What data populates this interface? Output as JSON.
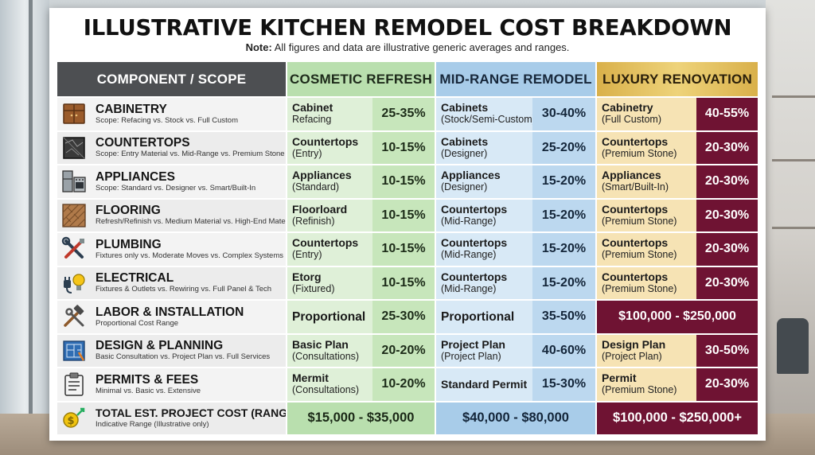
{
  "title": "ILLUSTRATIVE KITCHEN REMODEL COST BREAKDOWN",
  "note": {
    "label": "Note:",
    "text": "All figures and data are illustrative generic averages and ranges."
  },
  "headers": {
    "component": "COMPONENT / SCOPE",
    "cosmetic": "COSMETIC REFRESH",
    "mid": "MID-RANGE REMODEL",
    "luxury": "LUXURY RENOVATION"
  },
  "rows": [
    {
      "icon": "cabinet-icon",
      "name": "CABINETRY",
      "scope": "Scope: Refacing vs. Stock vs. Full Custom",
      "cosmetic": {
        "l1": "Cabinet",
        "l2": "Refacing",
        "pct": "25-35%"
      },
      "mid": {
        "l1": "Cabinets",
        "l2": "(Stock/Semi-Custom)",
        "pct": "30-40%"
      },
      "luxury": {
        "l1": "Cabinetry",
        "l2": "(Full Custom)",
        "pct": "40-55%"
      }
    },
    {
      "icon": "countertop-icon",
      "name": "COUNTERTOPS",
      "scope": "Scope: Entry Material vs. Mid-Range vs. Premium Stone",
      "cosmetic": {
        "l1": "Countertops",
        "l2": "(Entry)",
        "pct": "10-15%"
      },
      "mid": {
        "l1": "Cabinets",
        "l2": "(Designer)",
        "pct": "25-20%"
      },
      "luxury": {
        "l1": "Countertops",
        "l2": "(Premium Stone)",
        "pct": "20-30%"
      }
    },
    {
      "icon": "appliances-icon",
      "name": "APPLIANCES",
      "scope": "Scope: Standard vs. Designer vs. Smart/Built-In",
      "cosmetic": {
        "l1": "Appliances",
        "l2": "(Standard)",
        "pct": "10-15%"
      },
      "mid": {
        "l1": "Appliances",
        "l2": "(Designer)",
        "pct": "15-20%"
      },
      "luxury": {
        "l1": "Appliances",
        "l2": "(Smart/Built-In)",
        "pct": "20-30%"
      }
    },
    {
      "icon": "flooring-icon",
      "name": "FLOORING",
      "scope": "Refresh/Refinish vs. Medium Material vs. High-End Material",
      "cosmetic": {
        "l1": "Floorloard",
        "l2": "(Refinish)",
        "pct": "10-15%"
      },
      "mid": {
        "l1": "Countertops",
        "l2": "(Mid-Range)",
        "pct": "15-20%"
      },
      "luxury": {
        "l1": "Countertops",
        "l2": "(Premium Stone)",
        "pct": "20-30%"
      }
    },
    {
      "icon": "plumbing-tools-icon",
      "name": "PLUMBING",
      "scope": "Fixtures only vs. Moderate Moves vs. Complex Systems",
      "cosmetic": {
        "l1": "Countertops",
        "l2": "(Entry)",
        "pct": "10-15%"
      },
      "mid": {
        "l1": "Countertops",
        "l2": "(Mid-Range)",
        "pct": "15-20%"
      },
      "luxury": {
        "l1": "Countertops",
        "l2": "(Premium Stone)",
        "pct": "20-30%"
      }
    },
    {
      "icon": "plug-bulb-icon",
      "name": "ELECTRICAL",
      "scope": "Fixtures & Outlets vs. Rewiring vs. Full Panel & Tech",
      "cosmetic": {
        "l1": "Etorg",
        "l2": "(Fixtured)",
        "pct": "10-15%"
      },
      "mid": {
        "l1": "Countertops",
        "l2": "(Mid-Range)",
        "pct": "15-20%"
      },
      "luxury": {
        "l1": "Countertops",
        "l2": "(Premium Stone)",
        "pct": "20-30%"
      }
    }
  ],
  "labor": {
    "icon": "hammer-wrench-icon",
    "name": "LABOR & INSTALLATION",
    "scope": "Proportional Cost Range",
    "cosmetic": {
      "l1": "Proportional",
      "pct": "25-30%"
    },
    "mid": {
      "l1": "Proportional",
      "pct": "35-50%"
    },
    "luxury": "$100,000 - $250,000"
  },
  "rows2": [
    {
      "icon": "blueprint-icon",
      "name": "DESIGN & PLANNING",
      "scope": "Basic Consultation vs. Project Plan vs. Full Services",
      "cosmetic": {
        "l1": "Basic Plan",
        "l2": "(Consultations)",
        "pct": "20-20%"
      },
      "mid": {
        "l1": "Project Plan",
        "l2": "(Project Plan)",
        "pct": "40-60%"
      },
      "luxury": {
        "l1": "Design Plan",
        "l2": "(Project Plan)",
        "pct": "30-50%"
      }
    }
  ],
  "permits": {
    "icon": "clipboard-icon",
    "name": "PERMITS & FEES",
    "scope": "Minimal vs. Basic vs. Extensive",
    "cosmetic": {
      "l1": "Mermit",
      "l2": "(Consultations)",
      "pct": "10-20%"
    },
    "mid": {
      "l1": "Standard Permit",
      "pct": "15-30%"
    },
    "luxury": {
      "l1": "Permit",
      "l2": "(Premium Stone)",
      "pct": "20-30%"
    }
  },
  "total": {
    "icon": "money-coin-icon",
    "name": "TOTAL EST. PROJECT COST (RANGE)",
    "scope": "Indicative Range (Illustrative only)",
    "cosmetic": "$15,000 - $35,000",
    "mid": "$40,000 - $80,000",
    "luxury": "$100,000 - $250,000+"
  }
}
